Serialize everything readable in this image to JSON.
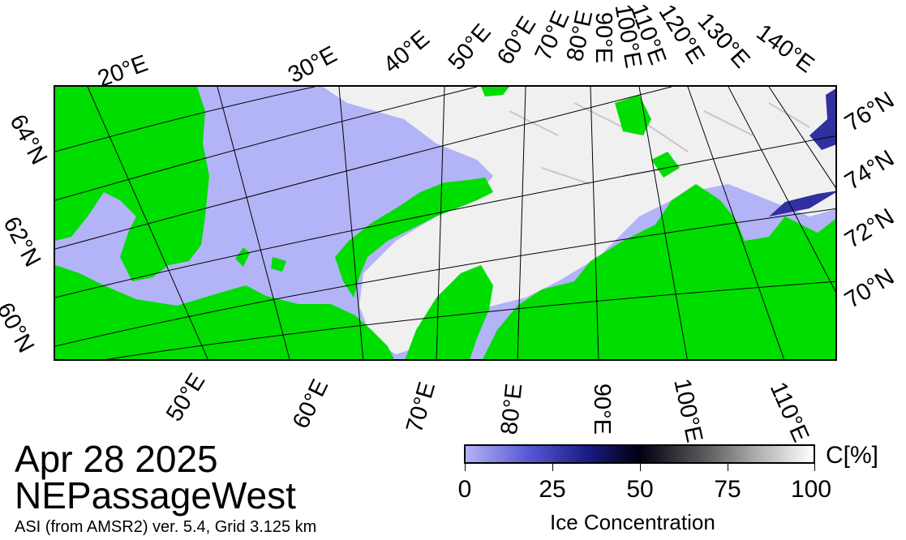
{
  "date": "Apr 28 2025",
  "region": "NEPassageWest",
  "product": "ASI (from AMSR2) ver. 5.4,  Grid 3.125 km",
  "colorbar": {
    "unit": "C[%]",
    "title": "Ice Concentration",
    "ticks": [
      "0",
      "25",
      "50",
      "75",
      "100"
    ],
    "gradient_colors": [
      "#b3b3f7",
      "#1b1b86",
      "#000010",
      "#b5b5b5",
      "#ffffff"
    ]
  },
  "map": {
    "colors": {
      "land": "#00dd00",
      "open_water": "#b3b3f7",
      "ice": "#f2f2f2",
      "grid": "#000000"
    },
    "lon_labels_top": [
      "20°E",
      "30°E",
      "40°E",
      "50°E",
      "60°E",
      "70°E",
      "80°E",
      "90°E",
      "100°E",
      "110°E",
      "120°E",
      "130°E",
      "140°E"
    ],
    "lon_labels_bottom": [
      "50°E",
      "60°E",
      "70°E",
      "80°E",
      "90°E",
      "100°E",
      "110°E"
    ],
    "lat_labels_left": [
      "64°N",
      "62°N",
      "60°N"
    ],
    "lat_labels_right": [
      "76°N",
      "74°N",
      "72°N",
      "70°N"
    ]
  }
}
